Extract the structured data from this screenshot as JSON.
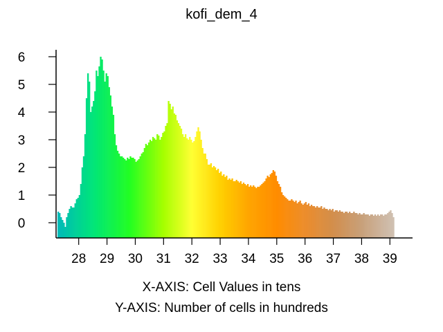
{
  "chart_data": {
    "type": "bar",
    "title": "kofi_dem_4",
    "xlabel": "X-AXIS: Cell Values in tens",
    "ylabel": "Y-AXIS: Number of cells in hundreds",
    "x_ticks": [
      "28",
      "29",
      "30",
      "31",
      "32",
      "33",
      "34",
      "35",
      "36",
      "37",
      "38",
      "39"
    ],
    "y_ticks": [
      "0",
      "1",
      "2",
      "3",
      "4",
      "5",
      "6"
    ],
    "xlim": [
      27.2,
      39.8
    ],
    "ylim": [
      -0.55,
      6.25
    ],
    "bin_width": 0.05,
    "x_start": 27.25,
    "values": [
      0.4,
      0.35,
      0.2,
      0.1,
      0.0,
      -0.15,
      0.2,
      0.35,
      0.5,
      0.6,
      0.55,
      0.55,
      0.7,
      0.85,
      0.9,
      1.0,
      1.4,
      2.0,
      2.4,
      3.2,
      4.5,
      5.4,
      5.1,
      4.0,
      4.2,
      4.4,
      4.75,
      5.5,
      5.3,
      5.65,
      6.0,
      5.9,
      5.5,
      5.1,
      5.4,
      5.3,
      4.9,
      4.6,
      4.2,
      3.9,
      3.2,
      2.8,
      2.6,
      2.5,
      2.4,
      2.4,
      2.35,
      2.3,
      2.25,
      2.35,
      2.3,
      2.4,
      2.35,
      2.35,
      2.3,
      2.2,
      2.25,
      2.3,
      2.4,
      2.5,
      2.55,
      2.7,
      2.85,
      2.8,
      2.9,
      3.0,
      2.95,
      3.1,
      3.05,
      3.0,
      3.2,
      3.15,
      3.0,
      3.1,
      3.25,
      3.3,
      3.5,
      3.6,
      4.4,
      4.3,
      4.1,
      4.2,
      3.95,
      3.9,
      3.7,
      3.6,
      3.5,
      3.4,
      3.2,
      3.1,
      3.2,
      3.05,
      3.0,
      3.1,
      3.0,
      2.9,
      2.95,
      3.1,
      3.3,
      3.45,
      3.3,
      3.0,
      2.7,
      2.5,
      2.5,
      2.3,
      2.1,
      2.1,
      2.15,
      2.0,
      2.05,
      2.0,
      1.9,
      1.95,
      1.8,
      1.85,
      1.7,
      1.75,
      1.65,
      1.7,
      1.55,
      1.6,
      1.55,
      1.6,
      1.5,
      1.5,
      1.55,
      1.5,
      1.45,
      1.5,
      1.4,
      1.45,
      1.4,
      1.35,
      1.4,
      1.3,
      1.35,
      1.3,
      1.35,
      1.3,
      1.25,
      1.3,
      1.3,
      1.35,
      1.4,
      1.45,
      1.5,
      1.6,
      1.7,
      1.65,
      1.75,
      1.8,
      1.9,
      1.85,
      1.7,
      1.5,
      1.4,
      1.3,
      1.1,
      1.0,
      0.95,
      0.9,
      0.85,
      0.8,
      0.8,
      0.85,
      0.8,
      0.75,
      0.8,
      0.7,
      0.75,
      0.8,
      0.7,
      0.65,
      0.7,
      0.75,
      0.65,
      0.7,
      0.6,
      0.65,
      0.6,
      0.6,
      0.55,
      0.6,
      0.55,
      0.55,
      0.6,
      0.5,
      0.55,
      0.5,
      0.5,
      0.45,
      0.5,
      0.45,
      0.5,
      0.4,
      0.45,
      0.45,
      0.4,
      0.45,
      0.4,
      0.4,
      0.35,
      0.4,
      0.4,
      0.35,
      0.4,
      0.35,
      0.35,
      0.4,
      0.35,
      0.35,
      0.3,
      0.35,
      0.3,
      0.3,
      0.35,
      0.3,
      0.3,
      0.3,
      0.25,
      0.3,
      0.3,
      0.25,
      0.3,
      0.25,
      0.3,
      0.25,
      0.3,
      0.3,
      0.25,
      0.3,
      0.3,
      0.35,
      0.4,
      0.45,
      0.35,
      0.2
    ],
    "color_stops": [
      {
        "x": 27.25,
        "color": "#00b9b9"
      },
      {
        "x": 28.5,
        "color": "#00e57a"
      },
      {
        "x": 29.8,
        "color": "#22ff22"
      },
      {
        "x": 31.0,
        "color": "#a6ff00"
      },
      {
        "x": 32.0,
        "color": "#ffff33"
      },
      {
        "x": 33.0,
        "color": "#ffd000"
      },
      {
        "x": 34.0,
        "color": "#ffa500"
      },
      {
        "x": 35.0,
        "color": "#ff8c00"
      },
      {
        "x": 36.0,
        "color": "#ec8d2c"
      },
      {
        "x": 37.0,
        "color": "#d28e4c"
      },
      {
        "x": 38.0,
        "color": "#c8a07a"
      },
      {
        "x": 39.8,
        "color": "#d4d4d4"
      }
    ],
    "grid": false,
    "legend": "none"
  }
}
